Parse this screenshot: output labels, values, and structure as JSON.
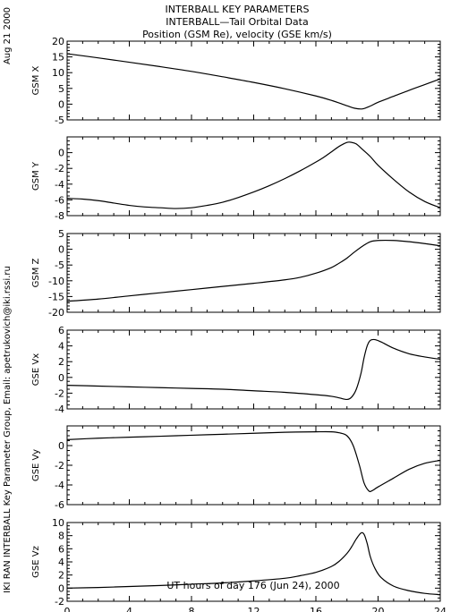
{
  "header": {
    "date": "Aug 21 2000",
    "title1": "INTERBALL KEY PARAMETERS",
    "title2": "INTERBALL—Tail Orbital Data",
    "title3": "Position (GSM Re), velocity (GSE km/s)"
  },
  "sidebar": {
    "credit": "IKI RAN INTERBALL Key Parameter Group, Email: apetrukovich@iki.rssi.ru"
  },
  "colors": {
    "line": "#000000",
    "frame": "#000000",
    "background": "#ffffff"
  },
  "chart_data": {
    "type": "line",
    "xlabel": "UT hours of day 176 (Jun 24), 2000",
    "xlim": [
      0,
      24
    ],
    "xticks": [
      0,
      4,
      8,
      12,
      16,
      20,
      24
    ],
    "panels": [
      {
        "ylabel": "GSM X",
        "ylim": [
          -5,
          20
        ],
        "yticks": [
          -5,
          0,
          5,
          10,
          15,
          20
        ],
        "x": [
          0,
          2,
          4,
          6,
          8,
          10,
          12,
          14,
          16,
          17,
          18,
          18.5,
          19,
          19.5,
          20,
          21,
          22,
          23,
          24
        ],
        "y": [
          16,
          14.7,
          13.3,
          11.9,
          10.4,
          8.7,
          6.9,
          4.9,
          2.6,
          1.2,
          -0.5,
          -1.3,
          -1.5,
          -0.6,
          0.6,
          2.5,
          4.4,
          6.2,
          8
        ]
      },
      {
        "ylabel": "GSM Y",
        "ylim": [
          -8,
          2
        ],
        "yticks": [
          -8,
          -6,
          -4,
          -2,
          0
        ],
        "x": [
          0,
          1,
          2,
          3,
          4,
          5,
          6,
          7,
          8,
          9,
          10,
          11,
          12,
          13,
          14,
          15,
          16,
          16.5,
          17,
          17.5,
          18,
          18.3,
          18.6,
          19,
          19.5,
          20,
          21,
          22,
          23,
          24
        ],
        "y": [
          -5.8,
          -5.9,
          -6.1,
          -6.4,
          -6.7,
          -6.9,
          -7.0,
          -7.1,
          -7.0,
          -6.7,
          -6.3,
          -5.7,
          -5.0,
          -4.2,
          -3.3,
          -2.3,
          -1.2,
          -0.6,
          0.1,
          0.8,
          1.3,
          1.3,
          1.1,
          0.4,
          -0.5,
          -1.6,
          -3.4,
          -5.0,
          -6.2,
          -7.0
        ]
      },
      {
        "ylabel": "GSM Z",
        "ylim": [
          -20,
          5
        ],
        "yticks": [
          -20,
          -15,
          -10,
          -5,
          0,
          5
        ],
        "x": [
          0,
          2,
          4,
          6,
          8,
          10,
          12,
          14,
          15,
          16,
          17,
          17.5,
          18,
          18.5,
          19,
          19.5,
          20,
          21,
          22,
          23,
          24
        ],
        "y": [
          -16.5,
          -15.8,
          -14.8,
          -13.8,
          -12.8,
          -11.8,
          -10.8,
          -9.7,
          -8.9,
          -7.6,
          -5.8,
          -4.4,
          -2.8,
          -0.8,
          1.0,
          2.4,
          2.8,
          2.8,
          2.4,
          1.8,
          1.1
        ]
      },
      {
        "ylabel": "GSE Vx",
        "ylim": [
          -4,
          6
        ],
        "yticks": [
          -4,
          -2,
          0,
          2,
          4,
          6
        ],
        "x": [
          0,
          2,
          4,
          6,
          8,
          10,
          12,
          14,
          16,
          17,
          17.5,
          18,
          18.3,
          18.6,
          18.9,
          19.1,
          19.3,
          19.5,
          19.8,
          20.2,
          21,
          22,
          23,
          24
        ],
        "y": [
          -1.0,
          -1.1,
          -1.2,
          -1.3,
          -1.4,
          -1.5,
          -1.7,
          -1.9,
          -2.2,
          -2.4,
          -2.6,
          -2.8,
          -2.5,
          -1.5,
          0.5,
          2.5,
          4.0,
          4.7,
          4.8,
          4.5,
          3.7,
          3.0,
          2.6,
          2.3
        ]
      },
      {
        "ylabel": "GSE Vy",
        "ylim": [
          -6,
          2
        ],
        "yticks": [
          -6,
          -4,
          -2,
          0
        ],
        "x": [
          0,
          2,
          4,
          6,
          8,
          10,
          12,
          14,
          16,
          17,
          17.5,
          18,
          18.4,
          18.8,
          19.1,
          19.4,
          19.6,
          20,
          21,
          22,
          23,
          24
        ],
        "y": [
          0.6,
          0.75,
          0.85,
          0.95,
          1.05,
          1.15,
          1.25,
          1.35,
          1.4,
          1.4,
          1.3,
          1.0,
          0.0,
          -2.0,
          -3.8,
          -4.6,
          -4.6,
          -4.2,
          -3.3,
          -2.4,
          -1.8,
          -1.5
        ]
      },
      {
        "ylabel": "GSE Vz",
        "ylim": [
          -2,
          10
        ],
        "yticks": [
          -2,
          0,
          2,
          4,
          6,
          8,
          10
        ],
        "x": [
          0,
          2,
          4,
          6,
          8,
          10,
          12,
          14,
          15,
          16,
          17,
          17.5,
          18,
          18.3,
          18.6,
          18.9,
          19.1,
          19.3,
          19.5,
          19.8,
          20.2,
          21,
          22,
          23,
          24
        ],
        "y": [
          0.0,
          0.1,
          0.25,
          0.4,
          0.6,
          0.8,
          1.1,
          1.5,
          1.9,
          2.4,
          3.3,
          4.1,
          5.3,
          6.3,
          7.5,
          8.4,
          8.2,
          6.8,
          4.8,
          3.0,
          1.6,
          0.3,
          -0.4,
          -0.8,
          -1.0
        ]
      }
    ]
  }
}
